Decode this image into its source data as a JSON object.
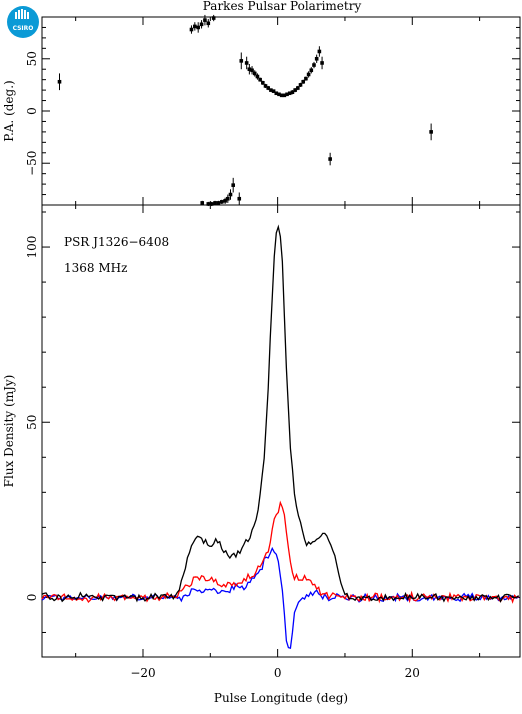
{
  "chart_data": [
    {
      "type": "scatter",
      "panel": "position-angle",
      "title": "Parkes Pulsar Polarimetry",
      "logo_text": "CSIRO",
      "xlabel": "",
      "ylabel": "P.A. (deg.)",
      "xlim": [
        -35,
        36
      ],
      "ylim": [
        -90,
        90
      ],
      "yticks": [
        -50,
        0,
        50
      ],
      "ytick_labels": [
        "−50",
        "0",
        "50"
      ],
      "xticks": [
        -20,
        0,
        20
      ],
      "error_bars": true,
      "points": [
        {
          "x": -32.4,
          "y": 28,
          "err": 8
        },
        {
          "x": -12.8,
          "y": 78,
          "err": 4
        },
        {
          "x": -12.3,
          "y": 81,
          "err": 4
        },
        {
          "x": -11.8,
          "y": 80,
          "err": 5
        },
        {
          "x": -11.3,
          "y": 83,
          "err": 4
        },
        {
          "x": -10.8,
          "y": 87,
          "err": 5
        },
        {
          "x": -10.3,
          "y": 84,
          "err": 4
        },
        {
          "x": -9.5,
          "y": 89,
          "err": 3
        },
        {
          "x": -11.2,
          "y": -88,
          "err": 2
        },
        {
          "x": -10.3,
          "y": -89,
          "err": 2
        },
        {
          "x": -9.8,
          "y": -89,
          "err": 2
        },
        {
          "x": -9.3,
          "y": -88,
          "err": 2
        },
        {
          "x": -8.8,
          "y": -88,
          "err": 2
        },
        {
          "x": -8.3,
          "y": -87,
          "err": 2
        },
        {
          "x": -7.8,
          "y": -86,
          "err": 3
        },
        {
          "x": -7.4,
          "y": -84,
          "err": 4
        },
        {
          "x": -7.0,
          "y": -80,
          "err": 5
        },
        {
          "x": -6.6,
          "y": -71,
          "err": 7
        },
        {
          "x": -5.7,
          "y": -84,
          "err": 6
        },
        {
          "x": -5.4,
          "y": 48,
          "err": 8
        },
        {
          "x": -4.6,
          "y": 46,
          "err": 6
        },
        {
          "x": -4.2,
          "y": 40,
          "err": 5
        },
        {
          "x": -3.8,
          "y": 39,
          "err": 4
        },
        {
          "x": -3.4,
          "y": 36,
          "err": 3
        },
        {
          "x": -3.0,
          "y": 33,
          "err": 3
        },
        {
          "x": -2.6,
          "y": 30,
          "err": 2
        },
        {
          "x": -2.2,
          "y": 27,
          "err": 2
        },
        {
          "x": -1.8,
          "y": 24,
          "err": 2
        },
        {
          "x": -1.4,
          "y": 22,
          "err": 2
        },
        {
          "x": -1.0,
          "y": 20,
          "err": 1.5
        },
        {
          "x": -0.6,
          "y": 19,
          "err": 1.5
        },
        {
          "x": -0.2,
          "y": 17,
          "err": 1.5
        },
        {
          "x": 0.2,
          "y": 16,
          "err": 1.5
        },
        {
          "x": 0.6,
          "y": 15,
          "err": 1.5
        },
        {
          "x": 1.0,
          "y": 15,
          "err": 1.5
        },
        {
          "x": 1.4,
          "y": 16,
          "err": 1.5
        },
        {
          "x": 1.8,
          "y": 17,
          "err": 1.5
        },
        {
          "x": 2.2,
          "y": 18,
          "err": 2
        },
        {
          "x": 2.6,
          "y": 20,
          "err": 2
        },
        {
          "x": 3.0,
          "y": 22,
          "err": 2
        },
        {
          "x": 3.4,
          "y": 25,
          "err": 2
        },
        {
          "x": 3.8,
          "y": 28,
          "err": 2
        },
        {
          "x": 4.2,
          "y": 31,
          "err": 2
        },
        {
          "x": 4.6,
          "y": 35,
          "err": 3
        },
        {
          "x": 5.0,
          "y": 39,
          "err": 3
        },
        {
          "x": 5.4,
          "y": 44,
          "err": 3
        },
        {
          "x": 5.8,
          "y": 50,
          "err": 4
        },
        {
          "x": 6.2,
          "y": 57,
          "err": 5
        },
        {
          "x": 6.6,
          "y": 46,
          "err": 6
        },
        {
          "x": 7.8,
          "y": -46,
          "err": 6
        },
        {
          "x": 22.8,
          "y": -20,
          "err": 8
        }
      ]
    },
    {
      "type": "line",
      "panel": "flux-profile",
      "xlabel": "Pulse Longitude (deg)",
      "ylabel": "Flux Density (mJy)",
      "xlim": [
        -35,
        36
      ],
      "ylim": [
        -17,
        112
      ],
      "xticks": [
        -20,
        0,
        20
      ],
      "xtick_labels": [
        "−20",
        "0",
        "20"
      ],
      "yticks": [
        0,
        50,
        100
      ],
      "ytick_labels": [
        "0",
        "50",
        "100"
      ],
      "annotations": [
        "PSR J1326−6408",
        "1368 MHz"
      ],
      "noise": {
        "base": 1.1,
        "jitter": 0.8
      },
      "series": [
        {
          "key": "total",
          "color": "#000000",
          "points": [
            [
              -35,
              0
            ],
            [
              -18,
              0
            ],
            [
              -15,
              1
            ],
            [
              -14.3,
              4
            ],
            [
              -13.6,
              10
            ],
            [
              -12.8,
              15
            ],
            [
              -12.0,
              18
            ],
            [
              -11.0,
              16
            ],
            [
              -10.0,
              14
            ],
            [
              -9.0,
              16
            ],
            [
              -8.0,
              13
            ],
            [
              -7.0,
              11
            ],
            [
              -6.0,
              12
            ],
            [
              -5.0,
              15
            ],
            [
              -4.0,
              18
            ],
            [
              -3.0,
              24
            ],
            [
              -2.2,
              35
            ],
            [
              -1.5,
              55
            ],
            [
              -1.0,
              78
            ],
            [
              -0.5,
              97
            ],
            [
              -0.2,
              104
            ],
            [
              0,
              107
            ],
            [
              0.3,
              106
            ],
            [
              0.7,
              96
            ],
            [
              1.2,
              70
            ],
            [
              1.8,
              46
            ],
            [
              2.4,
              31
            ],
            [
              3.0,
              24
            ],
            [
              3.6,
              20
            ],
            [
              4.2,
              16
            ],
            [
              5.0,
              15
            ],
            [
              6.0,
              17
            ],
            [
              7.0,
              18
            ],
            [
              8.0,
              15
            ],
            [
              8.8,
              9
            ],
            [
              9.5,
              3
            ],
            [
              10.5,
              0
            ],
            [
              36,
              0
            ]
          ]
        },
        {
          "key": "linear",
          "color": "#ff0000",
          "points": [
            [
              -35,
              0
            ],
            [
              -15,
              0
            ],
            [
              -14,
              2
            ],
            [
              -13,
              4
            ],
            [
              -12,
              6
            ],
            [
              -11,
              6
            ],
            [
              -10,
              5
            ],
            [
              -9,
              4
            ],
            [
              -8,
              3
            ],
            [
              -7,
              4
            ],
            [
              -6,
              4
            ],
            [
              -5,
              5
            ],
            [
              -4,
              6
            ],
            [
              -3,
              8
            ],
            [
              -2,
              11
            ],
            [
              -1,
              16
            ],
            [
              -0.5,
              22
            ],
            [
              0,
              25
            ],
            [
              0.5,
              27
            ],
            [
              1,
              24
            ],
            [
              1.6,
              13
            ],
            [
              2.2,
              7
            ],
            [
              3,
              5
            ],
            [
              4,
              6
            ],
            [
              5,
              4
            ],
            [
              6,
              2
            ],
            [
              7,
              1
            ],
            [
              8,
              0
            ],
            [
              36,
              0
            ]
          ]
        },
        {
          "key": "circular",
          "color": "#0000ff",
          "points": [
            [
              -35,
              0
            ],
            [
              -14,
              0
            ],
            [
              -13,
              1
            ],
            [
              -11,
              2
            ],
            [
              -9,
              2
            ],
            [
              -7,
              2
            ],
            [
              -6,
              3
            ],
            [
              -5,
              3
            ],
            [
              -4,
              5
            ],
            [
              -3,
              7
            ],
            [
              -2,
              10
            ],
            [
              -1,
              13
            ],
            [
              -0.5,
              14
            ],
            [
              0,
              12
            ],
            [
              0.5,
              5
            ],
            [
              0.9,
              -3
            ],
            [
              1.3,
              -12
            ],
            [
              1.7,
              -16
            ],
            [
              2.1,
              -12
            ],
            [
              2.5,
              -5
            ],
            [
              3,
              -1
            ],
            [
              4,
              0
            ],
            [
              5,
              1
            ],
            [
              6,
              1
            ],
            [
              7,
              0
            ],
            [
              36,
              0
            ]
          ]
        }
      ]
    }
  ]
}
